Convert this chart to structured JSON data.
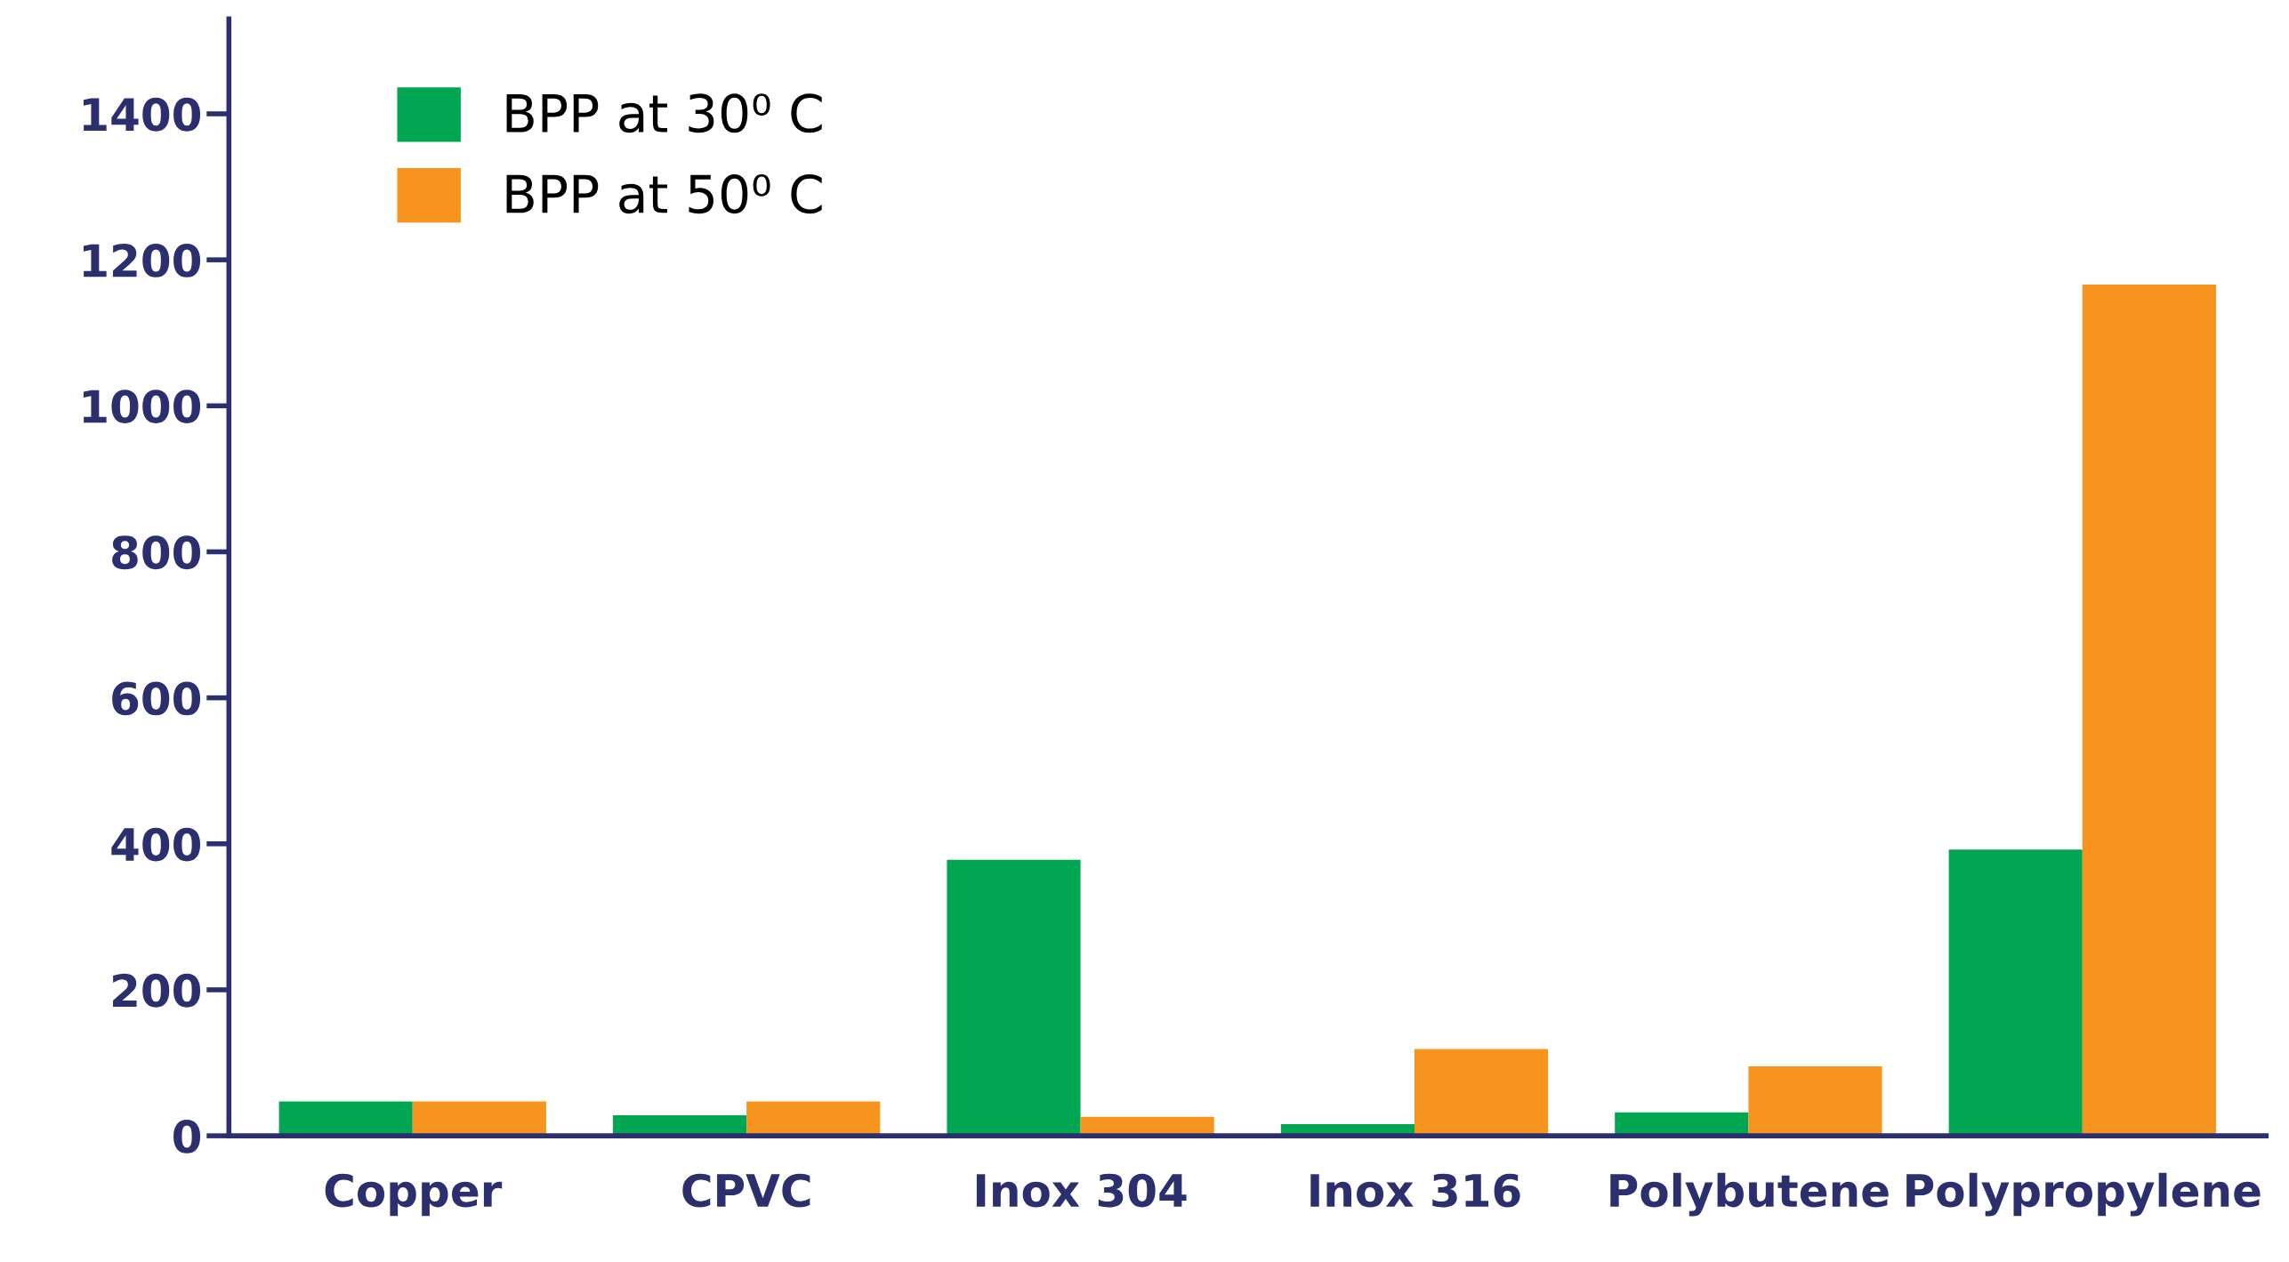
{
  "chart_data": {
    "type": "bar",
    "categories": [
      "Copper",
      "CPVC",
      "Inox 304",
      "Inox 316",
      "Polybutene",
      "Polypropylene"
    ],
    "series": [
      {
        "name": "BPP at 30⁰ C",
        "color": "#00a651",
        "values": [
          47,
          28,
          378,
          16,
          32,
          392
        ]
      },
      {
        "name": "BPP at 50⁰ C",
        "color": "#f7941d",
        "values": [
          47,
          47,
          26,
          119,
          95,
          1166
        ]
      }
    ],
    "ylim": [
      0,
      1530
    ],
    "yticks": [
      0,
      200,
      400,
      600,
      800,
      1000,
      1200,
      1400
    ],
    "grid": false,
    "legend": "top left"
  }
}
